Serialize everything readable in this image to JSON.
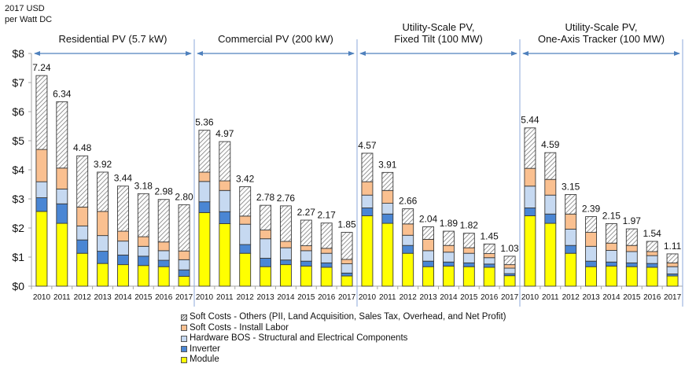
{
  "chart_data": {
    "type": "bar",
    "stacked": true,
    "title": "",
    "ylabel": "2017 USD\nper Watt DC",
    "ylabel_lines": [
      "2017 USD",
      "per Watt DC"
    ],
    "xlabel": "",
    "ylim": [
      0,
      8
    ],
    "yticks": [
      0,
      1,
      2,
      3,
      4,
      5,
      6,
      7,
      8
    ],
    "ytick_labels": [
      "$0",
      "$1",
      "$2",
      "$3",
      "$4",
      "$5",
      "$6",
      "$7",
      "$8"
    ],
    "grid": false,
    "legend_position": "bottom",
    "colors": {
      "module": "#ffff00",
      "inverter": "#4a86d4",
      "hardware_bos": "#c6d9f1",
      "install_labor": "#fac090",
      "soft_other": "hatched-gray",
      "group_arrow": "#4f81bd"
    },
    "legend": [
      {
        "key": "soft_other",
        "label": "Soft Costs - Others (PII, Land Acquisition, Sales Tax, Overhead, and Net Profit)"
      },
      {
        "key": "install_labor",
        "label": "Soft Costs - Install Labor"
      },
      {
        "key": "hardware_bos",
        "label": "Hardware BOS - Structural and Electrical Components"
      },
      {
        "key": "inverter",
        "label": "Inverter"
      },
      {
        "key": "module",
        "label": "Module"
      }
    ],
    "categories": [
      "2010",
      "2011",
      "2012",
      "2013",
      "2014",
      "2015",
      "2016",
      "2017"
    ],
    "groups": [
      {
        "name": "Residential PV (5.7 kW)",
        "name_lines": [
          "Residential PV (5.7 kW)"
        ],
        "totals": [
          7.24,
          6.34,
          4.48,
          3.92,
          3.44,
          3.18,
          2.98,
          2.8
        ],
        "total_labels": [
          "7.24",
          "6.34",
          "4.48",
          "3.92",
          "3.44",
          "3.18",
          "2.98",
          "2.80"
        ],
        "series": {
          "module": [
            2.57,
            2.16,
            1.13,
            0.78,
            0.74,
            0.71,
            0.67,
            0.34
          ],
          "inverter": [
            0.47,
            0.67,
            0.46,
            0.42,
            0.33,
            0.32,
            0.22,
            0.22
          ],
          "hardware_bos": [
            0.55,
            0.51,
            0.48,
            0.54,
            0.48,
            0.34,
            0.33,
            0.35
          ],
          "install_labor": [
            1.11,
            0.72,
            0.65,
            0.83,
            0.34,
            0.33,
            0.3,
            0.3
          ],
          "soft_other": [
            2.54,
            2.28,
            1.76,
            1.35,
            1.55,
            1.48,
            1.46,
            1.59
          ]
        }
      },
      {
        "name": "Commercial PV (200 kW)",
        "name_lines": [
          "Commercial PV (200 kW)"
        ],
        "totals": [
          5.36,
          4.97,
          3.42,
          2.78,
          2.76,
          2.27,
          2.17,
          1.85
        ],
        "total_labels": [
          "5.36",
          "4.97",
          "3.42",
          "2.78",
          "2.76",
          "2.27",
          "2.17",
          "1.85"
        ],
        "series": {
          "module": [
            2.53,
            2.15,
            1.13,
            0.67,
            0.74,
            0.69,
            0.65,
            0.35
          ],
          "inverter": [
            0.37,
            0.41,
            0.3,
            0.29,
            0.16,
            0.17,
            0.15,
            0.1
          ],
          "hardware_bos": [
            0.7,
            0.73,
            0.7,
            0.67,
            0.42,
            0.36,
            0.33,
            0.32
          ],
          "install_labor": [
            0.32,
            0.33,
            0.28,
            0.3,
            0.22,
            0.17,
            0.17,
            0.15
          ],
          "soft_other": [
            1.44,
            1.35,
            1.01,
            0.85,
            1.22,
            0.88,
            0.87,
            0.93
          ]
        }
      },
      {
        "name": "Utility-Scale PV, Fixed Tilt (100 MW)",
        "name_lines": [
          "Utility-Scale PV,",
          "Fixed Tilt (100 MW)"
        ],
        "totals": [
          4.57,
          3.91,
          2.66,
          2.04,
          1.89,
          1.82,
          1.45,
          1.03
        ],
        "total_labels": [
          "4.57",
          "3.91",
          "2.66",
          "2.04",
          "1.89",
          "1.82",
          "1.45",
          "1.03"
        ],
        "series": {
          "module": [
            2.42,
            2.16,
            1.13,
            0.67,
            0.69,
            0.67,
            0.65,
            0.36
          ],
          "inverter": [
            0.27,
            0.32,
            0.27,
            0.19,
            0.14,
            0.13,
            0.11,
            0.07
          ],
          "hardware_bos": [
            0.44,
            0.37,
            0.35,
            0.36,
            0.34,
            0.33,
            0.22,
            0.19
          ],
          "install_labor": [
            0.46,
            0.44,
            0.39,
            0.39,
            0.23,
            0.19,
            0.14,
            0.12
          ],
          "soft_other": [
            0.98,
            0.62,
            0.52,
            0.43,
            0.49,
            0.5,
            0.33,
            0.29
          ]
        }
      },
      {
        "name": "Utility-Scale PV, One-Axis Tracker (100 MW)",
        "name_lines": [
          "Utility-Scale PV,",
          "One-Axis Tracker (100 MW)"
        ],
        "totals": [
          5.44,
          4.59,
          3.15,
          2.39,
          2.15,
          1.97,
          1.54,
          1.11
        ],
        "total_labels": [
          "5.44",
          "4.59",
          "3.15",
          "2.39",
          "2.15",
          "1.97",
          "1.54",
          "1.11"
        ],
        "series": {
          "module": [
            2.42,
            2.16,
            1.13,
            0.67,
            0.69,
            0.67,
            0.65,
            0.35
          ],
          "inverter": [
            0.27,
            0.32,
            0.27,
            0.19,
            0.14,
            0.13,
            0.13,
            0.07
          ],
          "hardware_bos": [
            0.75,
            0.65,
            0.56,
            0.51,
            0.4,
            0.39,
            0.27,
            0.25
          ],
          "install_labor": [
            0.61,
            0.54,
            0.52,
            0.48,
            0.25,
            0.21,
            0.14,
            0.13
          ],
          "soft_other": [
            1.39,
            0.92,
            0.67,
            0.54,
            0.67,
            0.57,
            0.35,
            0.31
          ]
        }
      }
    ]
  }
}
